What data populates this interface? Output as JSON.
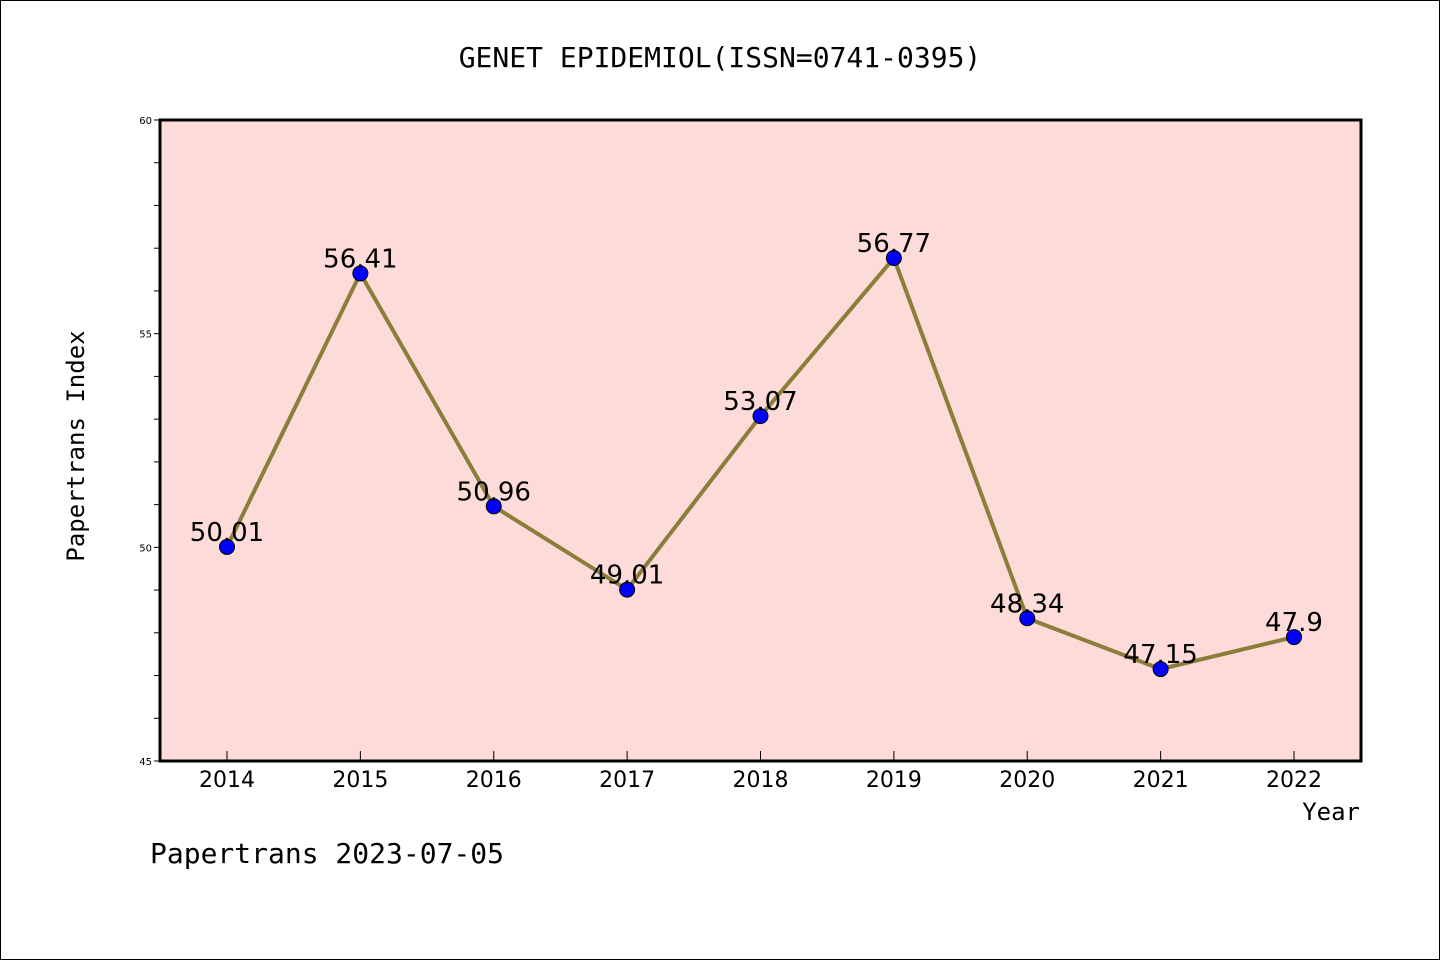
{
  "chart_data": {
    "type": "line",
    "title": "GENET EPIDEMIOL(ISSN=0741-0395)",
    "xlabel": "Year",
    "ylabel": "Papertrans Index",
    "categories": [
      "2014",
      "2015",
      "2016",
      "2017",
      "2018",
      "2019",
      "2020",
      "2021",
      "2022"
    ],
    "series": [
      {
        "values": [
          50.01,
          56.41,
          50.96,
          49.01,
          53.07,
          56.77,
          48.34,
          47.15,
          47.9
        ]
      }
    ],
    "data_labels": [
      "50.01",
      "56.41",
      "50.96",
      "49.01",
      "53.07",
      "56.77",
      "48.34",
      "47.15",
      "47.9"
    ],
    "ylim": [
      45,
      60
    ],
    "yticks": [
      "45",
      "50",
      "55",
      "60"
    ],
    "grid": false,
    "colors": {
      "plot_bg": "#fddbd8",
      "line": "#8b7d3a",
      "marker": "#0000ff"
    }
  },
  "footer": "Papertrans 2023-07-05"
}
